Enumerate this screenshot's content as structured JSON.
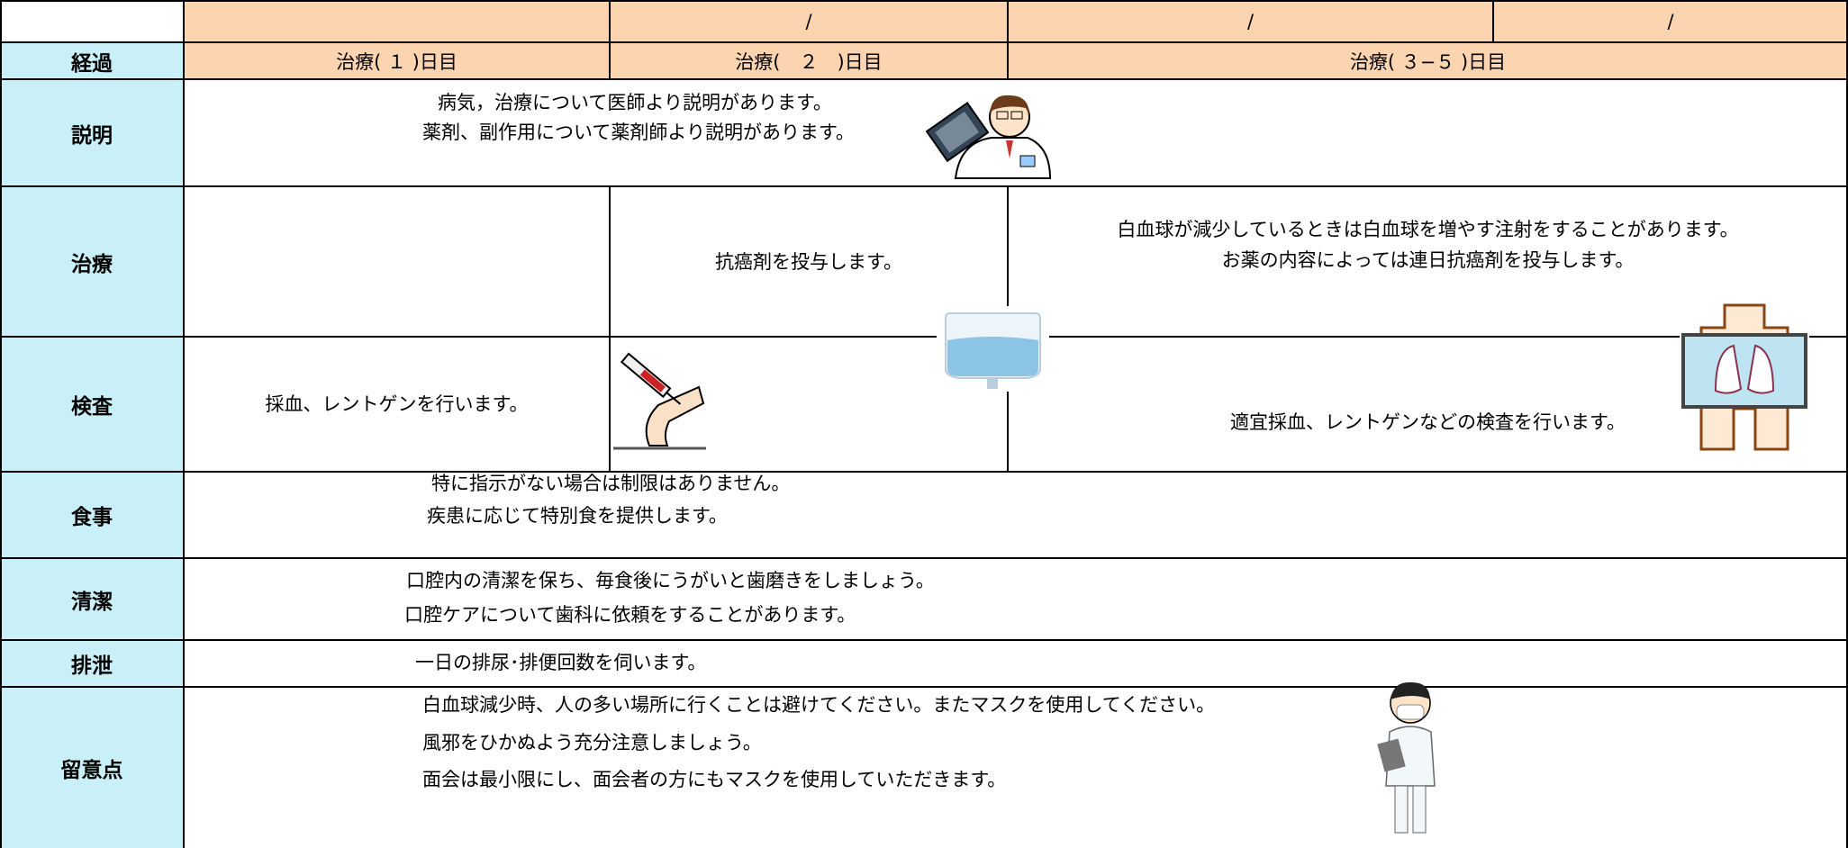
{
  "header": {
    "dates": [
      "/",
      "/",
      "/"
    ],
    "stage_label": "経過",
    "days": [
      "治療( １ )日目",
      "治療(　２　)日目",
      "治療( ３−５ )日目"
    ]
  },
  "explanation": {
    "label": "説明",
    "lines": [
      "病気，治療について医師より説明があります。",
      "薬剤、副作用について薬剤師より説明があります。"
    ]
  },
  "treatment": {
    "label": "治療",
    "day2": "抗癌剤を投与します。",
    "day3_5": [
      "白血球が減少しているときは白血球を増やす注射をすることがあります。",
      "お薬の内容によっては連日抗癌剤を投与します。"
    ]
  },
  "exam": {
    "label": "検査",
    "day1": "採血、レントゲンを行います。",
    "day3_5": "適宜採血、レントゲンなどの検査を行います。"
  },
  "meal": {
    "label": "食事",
    "lines": [
      "特に指示がない場合は制限はありません。",
      "疾患に応じて特別食を提供します。"
    ]
  },
  "hygiene": {
    "label": "清潔",
    "lines": [
      "口腔内の清潔を保ち、毎食後にうがいと歯磨きをしましょう。",
      "口腔ケアについて歯科に依頼をすることがあります。"
    ]
  },
  "excretion": {
    "label": "排泄",
    "lines": [
      "一日の排尿･排便回数を伺います。"
    ]
  },
  "notes": {
    "label": "留意点",
    "lines": [
      "白血球減少時、人の多い場所に行くことは避けてください。またマスクを使用してください。",
      "風邪をひかぬよう充分注意しましょう。",
      "面会は最小限にし、面会者の方にもマスクを使用していただきます。"
    ]
  }
}
